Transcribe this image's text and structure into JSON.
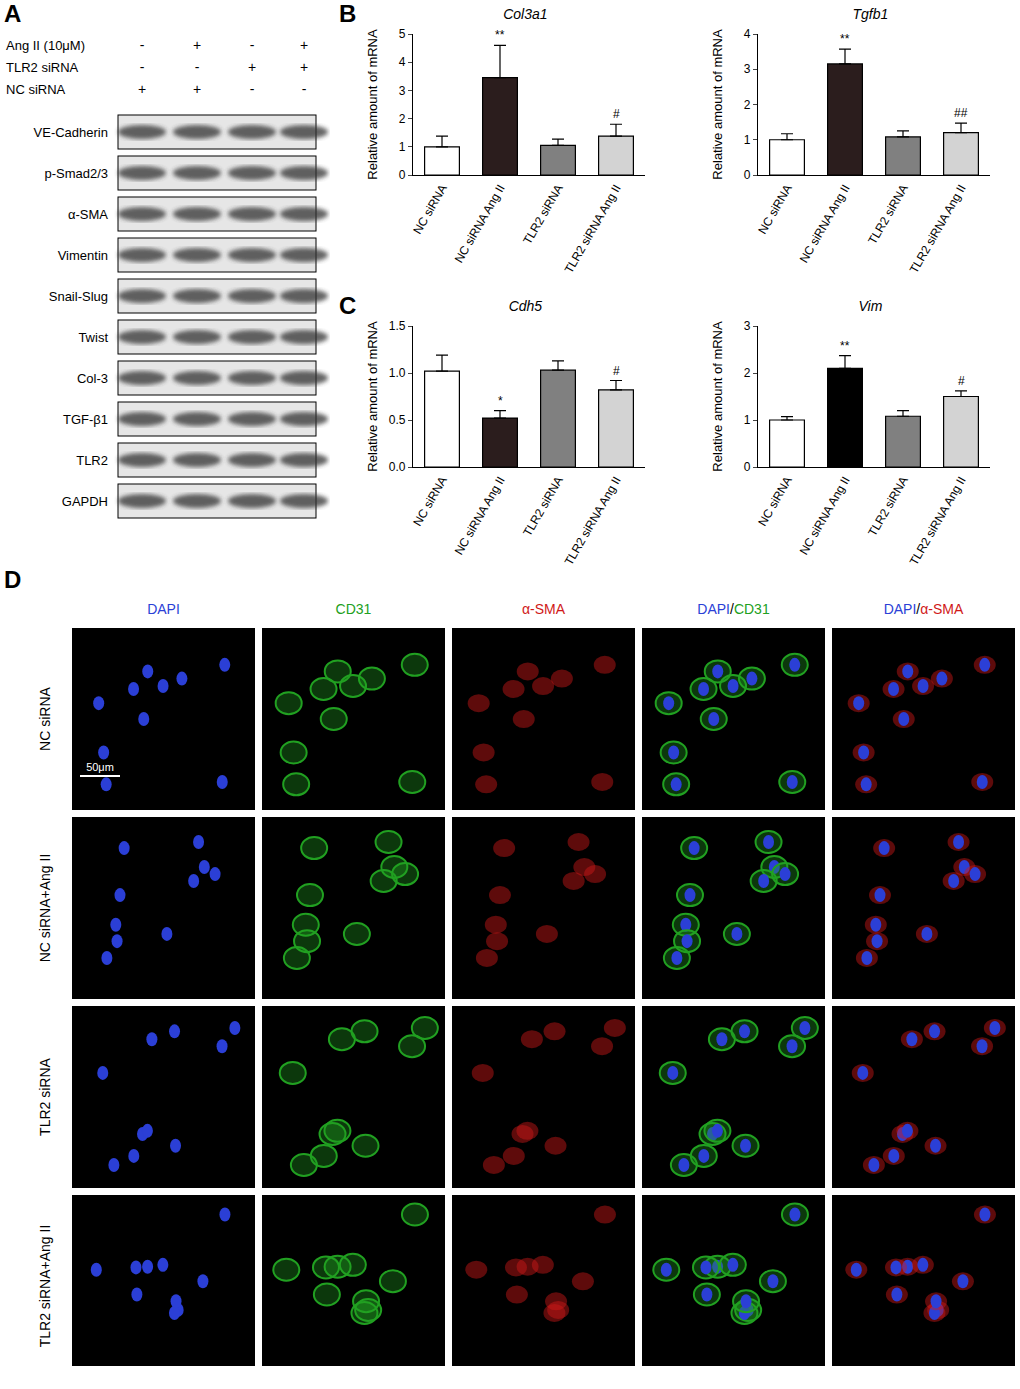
{
  "chart_data": [
    {
      "panel": "B",
      "type": "bar",
      "title": "Col3a1",
      "y_label": "Relative amount of mRNA",
      "categories": [
        "NC siRNA",
        "NC siRNA Ang II",
        "TLR2 siRNA",
        "TLR2 siRNA Ang II"
      ],
      "values": [
        1.0,
        3.45,
        1.05,
        1.38
      ],
      "errors": [
        0.38,
        1.15,
        0.22,
        0.42
      ],
      "significance": [
        null,
        "**",
        null,
        "#"
      ],
      "colors": [
        "#ffffff",
        "#2b1d1d",
        "#808080",
        "#d3d3d3"
      ],
      "ylim": [
        0,
        5
      ],
      "yticks": [
        0,
        1,
        2,
        3,
        4,
        5
      ],
      "grid": false
    },
    {
      "type": "bar",
      "title": "Tgfb1",
      "y_label": "Relative amount of mRNA",
      "categories": [
        "NC siRNA",
        "NC siRNA Ang II",
        "TLR2 siRNA",
        "TLR2 siRNA Ang II"
      ],
      "values": [
        1.0,
        3.15,
        1.08,
        1.2
      ],
      "errors": [
        0.17,
        0.42,
        0.17,
        0.27
      ],
      "significance": [
        null,
        "**",
        null,
        "##"
      ],
      "colors": [
        "#ffffff",
        "#2b1d1d",
        "#808080",
        "#d3d3d3"
      ],
      "ylim": [
        0,
        4
      ],
      "yticks": [
        0,
        1,
        2,
        3,
        4
      ],
      "grid": false
    },
    {
      "panel": "C",
      "type": "bar",
      "title": "Cdh5",
      "y_label": "Relative amount of mRNA",
      "categories": [
        "NC siRNA",
        "NC siRNA Ang II",
        "TLR2 siRNA",
        "TLR2 siRNA Ang II"
      ],
      "values": [
        1.02,
        0.52,
        1.03,
        0.82
      ],
      "errors": [
        0.17,
        0.08,
        0.1,
        0.1
      ],
      "significance": [
        null,
        "*",
        null,
        "#"
      ],
      "colors": [
        "#ffffff",
        "#2b1d1d",
        "#808080",
        "#d3d3d3"
      ],
      "ylim": [
        0,
        1.5
      ],
      "yticks": [
        {
          "value": 0,
          "label": "0.0"
        },
        0.5,
        {
          "value": 1,
          "label": "1.0"
        },
        1.5
      ],
      "grid": false
    },
    {
      "type": "bar",
      "title": "Vim",
      "y_label": "Relative amount of mRNA",
      "categories": [
        "NC siRNA",
        "NC siRNA Ang II",
        "TLR2 siRNA",
        "TLR2 siRNA Ang II"
      ],
      "values": [
        1.0,
        2.1,
        1.08,
        1.5
      ],
      "errors": [
        0.07,
        0.27,
        0.12,
        0.12
      ],
      "significance": [
        null,
        "**",
        null,
        "#"
      ],
      "colors": [
        "#ffffff",
        "#000000",
        "#808080",
        "#d3d3d3"
      ],
      "ylim": [
        0,
        3
      ],
      "yticks": [
        0,
        1,
        2,
        3
      ],
      "grid": false
    }
  ],
  "western_blot": {
    "panel": "A",
    "treatments": [
      {
        "label": "Ang II (10μM)",
        "signs": [
          "-",
          "+",
          "-",
          "+"
        ]
      },
      {
        "label": "TLR2 siRNA",
        "signs": [
          "-",
          "-",
          "+",
          "+"
        ]
      },
      {
        "label": "NC siRNA",
        "signs": [
          "+",
          "+",
          "-",
          "-"
        ]
      }
    ],
    "proteins": [
      "VE-Cadherin",
      "p-Smad2/3",
      "α-SMA",
      "Vimentin",
      "Snail-Slug",
      "Twist",
      "Col-3",
      "TGF-β1",
      "TLR2",
      "GAPDH"
    ]
  },
  "immunofluorescence": {
    "panel": "D",
    "columns": [
      [
        "DAPI"
      ],
      [
        "CD31"
      ],
      [
        "α-SMA"
      ],
      [
        "DAPI",
        "/",
        "CD31"
      ],
      [
        "DAPI",
        "/",
        "α-SMA"
      ]
    ],
    "channel_colors": {
      "DAPI": "#2b3fd6",
      "CD31": "#21a021",
      "α-SMA": "#d01818"
    },
    "rows": [
      "NC siRNA",
      "NC siRNA+Ang II",
      "TLR2 siRNA",
      "TLR2 siRNA+Ang II"
    ],
    "scale_bar": "50μm"
  }
}
